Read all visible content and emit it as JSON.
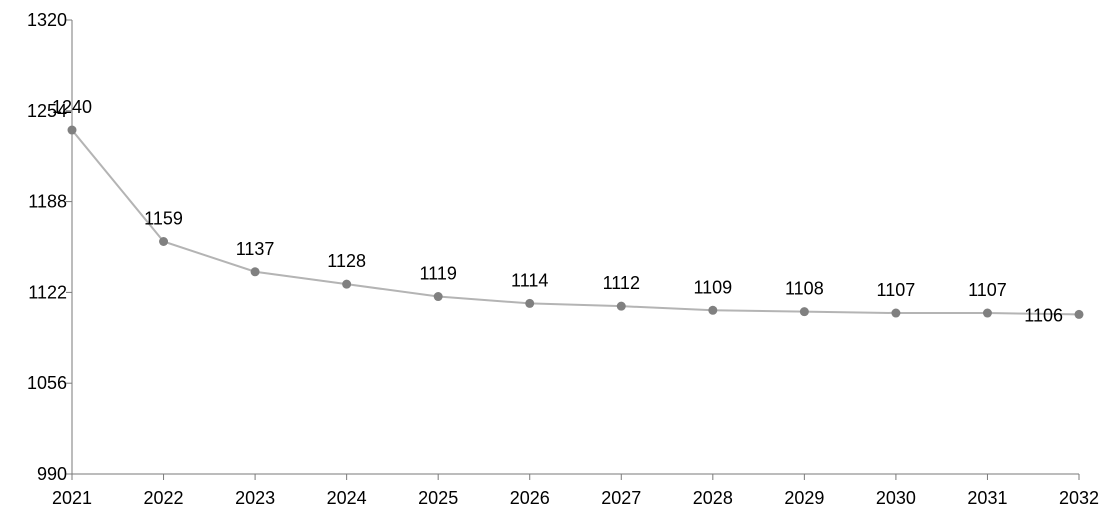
{
  "chart_data": {
    "type": "line",
    "title": "",
    "xlabel": "",
    "ylabel": "",
    "categories": [
      "2021",
      "2022",
      "2023",
      "2024",
      "2025",
      "2026",
      "2027",
      "2028",
      "2029",
      "2030",
      "2031",
      "2032"
    ],
    "series": [
      {
        "values": [
          1240,
          1159,
          1137,
          1128,
          1119,
          1114,
          1112,
          1109,
          1108,
          1107,
          1107,
          1106
        ],
        "data_labels": [
          "1240",
          "1159",
          "1137",
          "1128",
          "1119",
          "1114",
          "1112",
          "1109",
          "1108",
          "1107",
          "1107",
          "1106"
        ]
      }
    ],
    "ylim": [
      990,
      1320
    ],
    "yticks": [
      "990",
      "1056",
      "1122",
      "1188",
      "1254",
      "1320"
    ],
    "grid": false,
    "legend": "none",
    "colors": {
      "line": "#b4b4b4",
      "marker": "#808080",
      "axis": "#7a7a7a"
    }
  }
}
